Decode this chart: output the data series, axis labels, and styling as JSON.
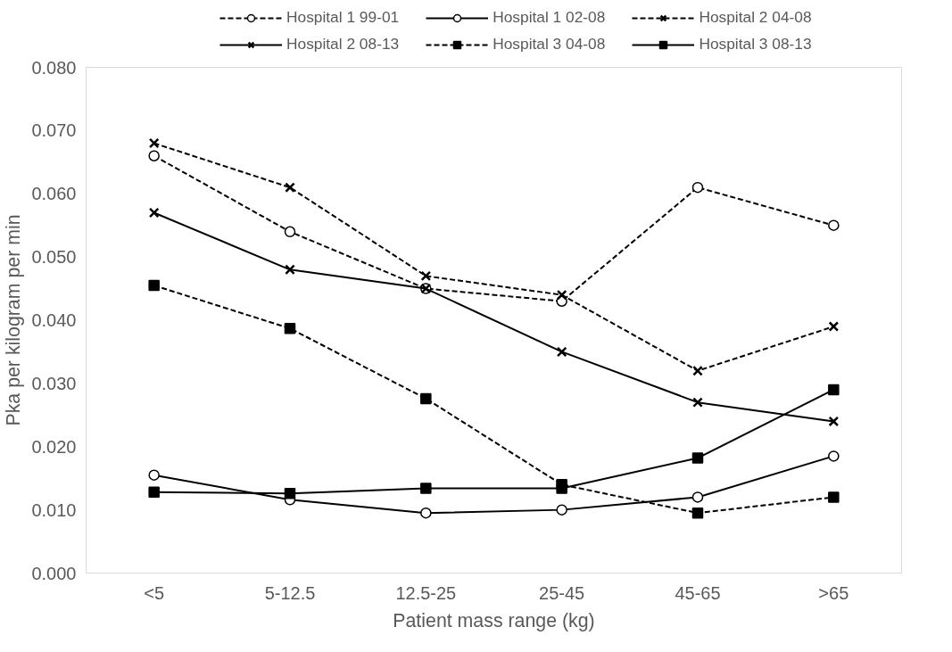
{
  "chart_data": {
    "type": "line",
    "xlabel": "Patient mass range (kg)",
    "ylabel": "Pka per kilogram per min",
    "categories": [
      "<5",
      "5-12.5",
      "12.5-25",
      "25-45",
      "45-65",
      ">65"
    ],
    "series": [
      {
        "name": "Hospital 1 99-01",
        "color": "#000000",
        "line_style": "dashed",
        "marker": "circle",
        "values": [
          0.066,
          0.054,
          0.045,
          0.043,
          0.061,
          0.055
        ]
      },
      {
        "name": "Hospital 1 02-08",
        "color": "#000000",
        "line_style": "solid",
        "marker": "circle",
        "values": [
          0.0155,
          0.0116,
          0.0095,
          0.01,
          0.012,
          0.0185
        ]
      },
      {
        "name": "Hospital 2 04-08",
        "color": "#000000",
        "line_style": "dashed",
        "marker": "cross",
        "values": [
          0.068,
          0.061,
          0.047,
          0.044,
          0.032,
          0.039
        ]
      },
      {
        "name": "Hospital 2 08-13",
        "color": "#000000",
        "line_style": "solid",
        "marker": "cross",
        "values": [
          0.057,
          0.048,
          0.045,
          0.035,
          0.027,
          0.024
        ]
      },
      {
        "name": "Hospital 3 04-08",
        "color": "#000000",
        "line_style": "dashed",
        "marker": "square",
        "values": [
          0.0455,
          0.0387,
          0.0276,
          0.014,
          0.0095,
          0.012
        ]
      },
      {
        "name": "Hospital 3 08-13",
        "color": "#000000",
        "line_style": "solid",
        "marker": "square",
        "values": [
          0.0128,
          0.0126,
          0.0134,
          0.0134,
          0.0182,
          0.029
        ]
      }
    ],
    "ylim": [
      0,
      0.08
    ],
    "yticks": [
      {
        "value": 0,
        "label": "0.000"
      },
      {
        "value": 0.01,
        "label": "0.010"
      },
      {
        "value": 0.02,
        "label": "0.020"
      },
      {
        "value": 0.03,
        "label": "0.030"
      },
      {
        "value": 0.04,
        "label": "0.040"
      },
      {
        "value": 0.05,
        "label": "0.050"
      },
      {
        "value": 0.06,
        "label": "0.060"
      },
      {
        "value": 0.07,
        "label": "0.070"
      },
      {
        "value": 0.08,
        "label": "0.080"
      }
    ],
    "legend": "top"
  }
}
